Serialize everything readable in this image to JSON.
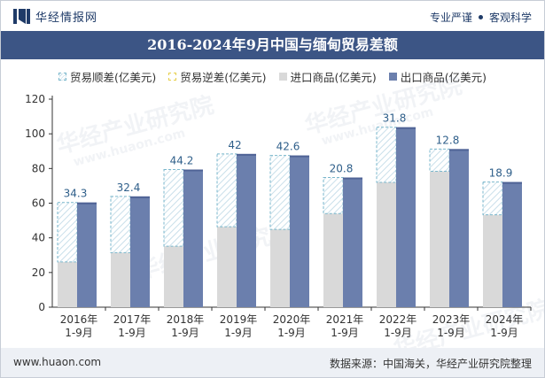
{
  "header": {
    "brand_name": "华经情报网",
    "tagline_left": "专业严谨",
    "tagline_right": "客观科学"
  },
  "watermark": {
    "text": "华经产业研究院",
    "url": "www.huaon.com"
  },
  "footer": {
    "url": "www.huaon.com",
    "source": "数据来源：中国海关，华经产业研究院整理"
  },
  "chart_data": {
    "type": "bar",
    "title": "2016-2024年9月中国与缅甸贸易差额",
    "categories": [
      "2016年\n1-9月",
      "2017年\n1-9月",
      "2018年\n1-9月",
      "2019年\n1-9月",
      "2020年\n1-9月",
      "2021年\n1-9月",
      "2022年\n1-9月",
      "2023年\n1-9月",
      "2024年\n1-9月"
    ],
    "ylim": [
      0,
      120
    ],
    "yticks": [
      0,
      20,
      40,
      60,
      80,
      100,
      120
    ],
    "xlabel": "",
    "ylabel": "",
    "legend": [
      "贸易顺差(亿美元)",
      "贸易逆差(亿美元)",
      "进口商品(亿美元)",
      "出口商品(亿美元)"
    ],
    "series": [
      {
        "name": "进口商品(亿美元)",
        "values": [
          26.1,
          31.5,
          35.2,
          46.4,
          44.9,
          54.0,
          72.0,
          78.4,
          53.3
        ]
      },
      {
        "name": "出口商品(亿美元)",
        "values": [
          60.4,
          63.9,
          79.4,
          88.4,
          87.5,
          74.8,
          103.8,
          91.2,
          72.2
        ]
      },
      {
        "name": "贸易顺差(亿美元)",
        "values": [
          34.3,
          32.4,
          44.2,
          42.0,
          42.6,
          20.8,
          31.8,
          12.8,
          18.9
        ]
      }
    ],
    "data_labels": [
      "34.3",
      "32.4",
      "44.2",
      "42",
      "42.6",
      "20.8",
      "31.8",
      "12.8",
      "18.9"
    ],
    "colors": {
      "import": "#d9d9d9",
      "export": "#6b7fad",
      "export_top": "#4f6396",
      "surplus_border": "#7ab7cc",
      "surplus_hatch": "#c9dfea",
      "label": "#2f5f8a",
      "axis": "#333333"
    }
  }
}
